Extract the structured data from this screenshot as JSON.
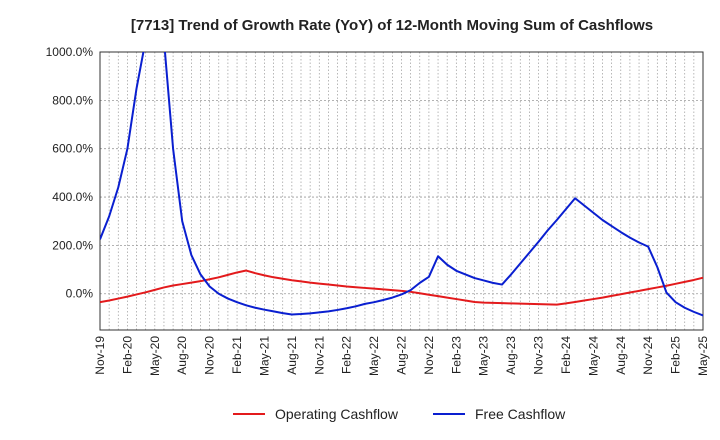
{
  "chart_data": {
    "type": "line",
    "title": "[7713]  Trend of Growth Rate (YoY) of 12-Month Moving Sum of Cashflows",
    "xlabel": "",
    "ylabel": "",
    "ylim": [
      -150,
      1000
    ],
    "yticks": [
      0,
      200,
      400,
      600,
      800,
      1000
    ],
    "ytick_labels": [
      "0.0%",
      "200.0%",
      "400.0%",
      "600.0%",
      "800.0%",
      "1000.0%"
    ],
    "x_start": "Nov-19",
    "x_end": "May-25",
    "x_tick_labels": [
      "Nov-19",
      "Feb-20",
      "May-20",
      "Aug-20",
      "Nov-20",
      "Feb-21",
      "May-21",
      "Aug-21",
      "Nov-21",
      "Feb-22",
      "May-22",
      "Aug-22",
      "Nov-22",
      "Feb-23",
      "May-23",
      "Aug-23",
      "Nov-23",
      "Feb-24",
      "May-24",
      "Aug-24",
      "Nov-24",
      "Feb-25",
      "May-25"
    ],
    "grid": true,
    "legend_position": "bottom",
    "series": [
      {
        "name": "Operating Cashflow",
        "color": "#e31a1c",
        "values": [
          -35,
          -28,
          -20,
          -12,
          -3,
          6,
          16,
          26,
          34,
          40,
          46,
          52,
          60,
          68,
          78,
          88,
          96,
          85,
          76,
          68,
          62,
          56,
          51,
          46,
          42,
          38,
          34,
          30,
          27,
          24,
          21,
          18,
          15,
          12,
          8,
          2,
          -4,
          -10,
          -16,
          -22,
          -28,
          -34,
          -37,
          -38,
          -39,
          -40,
          -41,
          -42,
          -43,
          -44,
          -45,
          -40,
          -34,
          -28,
          -22,
          -16,
          -9,
          -2,
          5,
          12,
          19,
          26,
          33,
          41,
          49,
          57,
          66,
          72,
          68,
          64,
          60,
          57,
          54,
          51,
          48,
          45,
          38,
          31,
          24,
          18,
          12,
          6,
          2
        ]
      },
      {
        "name": "Free Cashflow",
        "color": "#0a1fd0",
        "values": [
          225,
          320,
          440,
          600,
          850,
          1050,
          1100,
          1050,
          600,
          300,
          160,
          80,
          30,
          0,
          -20,
          -35,
          -48,
          -58,
          -66,
          -73,
          -80,
          -86,
          -84,
          -81,
          -77,
          -73,
          -67,
          -60,
          -52,
          -42,
          -35,
          -26,
          -16,
          -3,
          15,
          45,
          70,
          155,
          120,
          95,
          80,
          65,
          55,
          45,
          38,
          80,
          125,
          170,
          215,
          262,
          305,
          350,
          395,
          365,
          335,
          305,
          280,
          255,
          232,
          212,
          195,
          110,
          5,
          -35,
          -58,
          -75,
          -90,
          -103,
          -102,
          -101,
          -100,
          -99,
          -98,
          -97,
          -96,
          -95,
          -94,
          -93,
          -92
        ]
      }
    ]
  }
}
